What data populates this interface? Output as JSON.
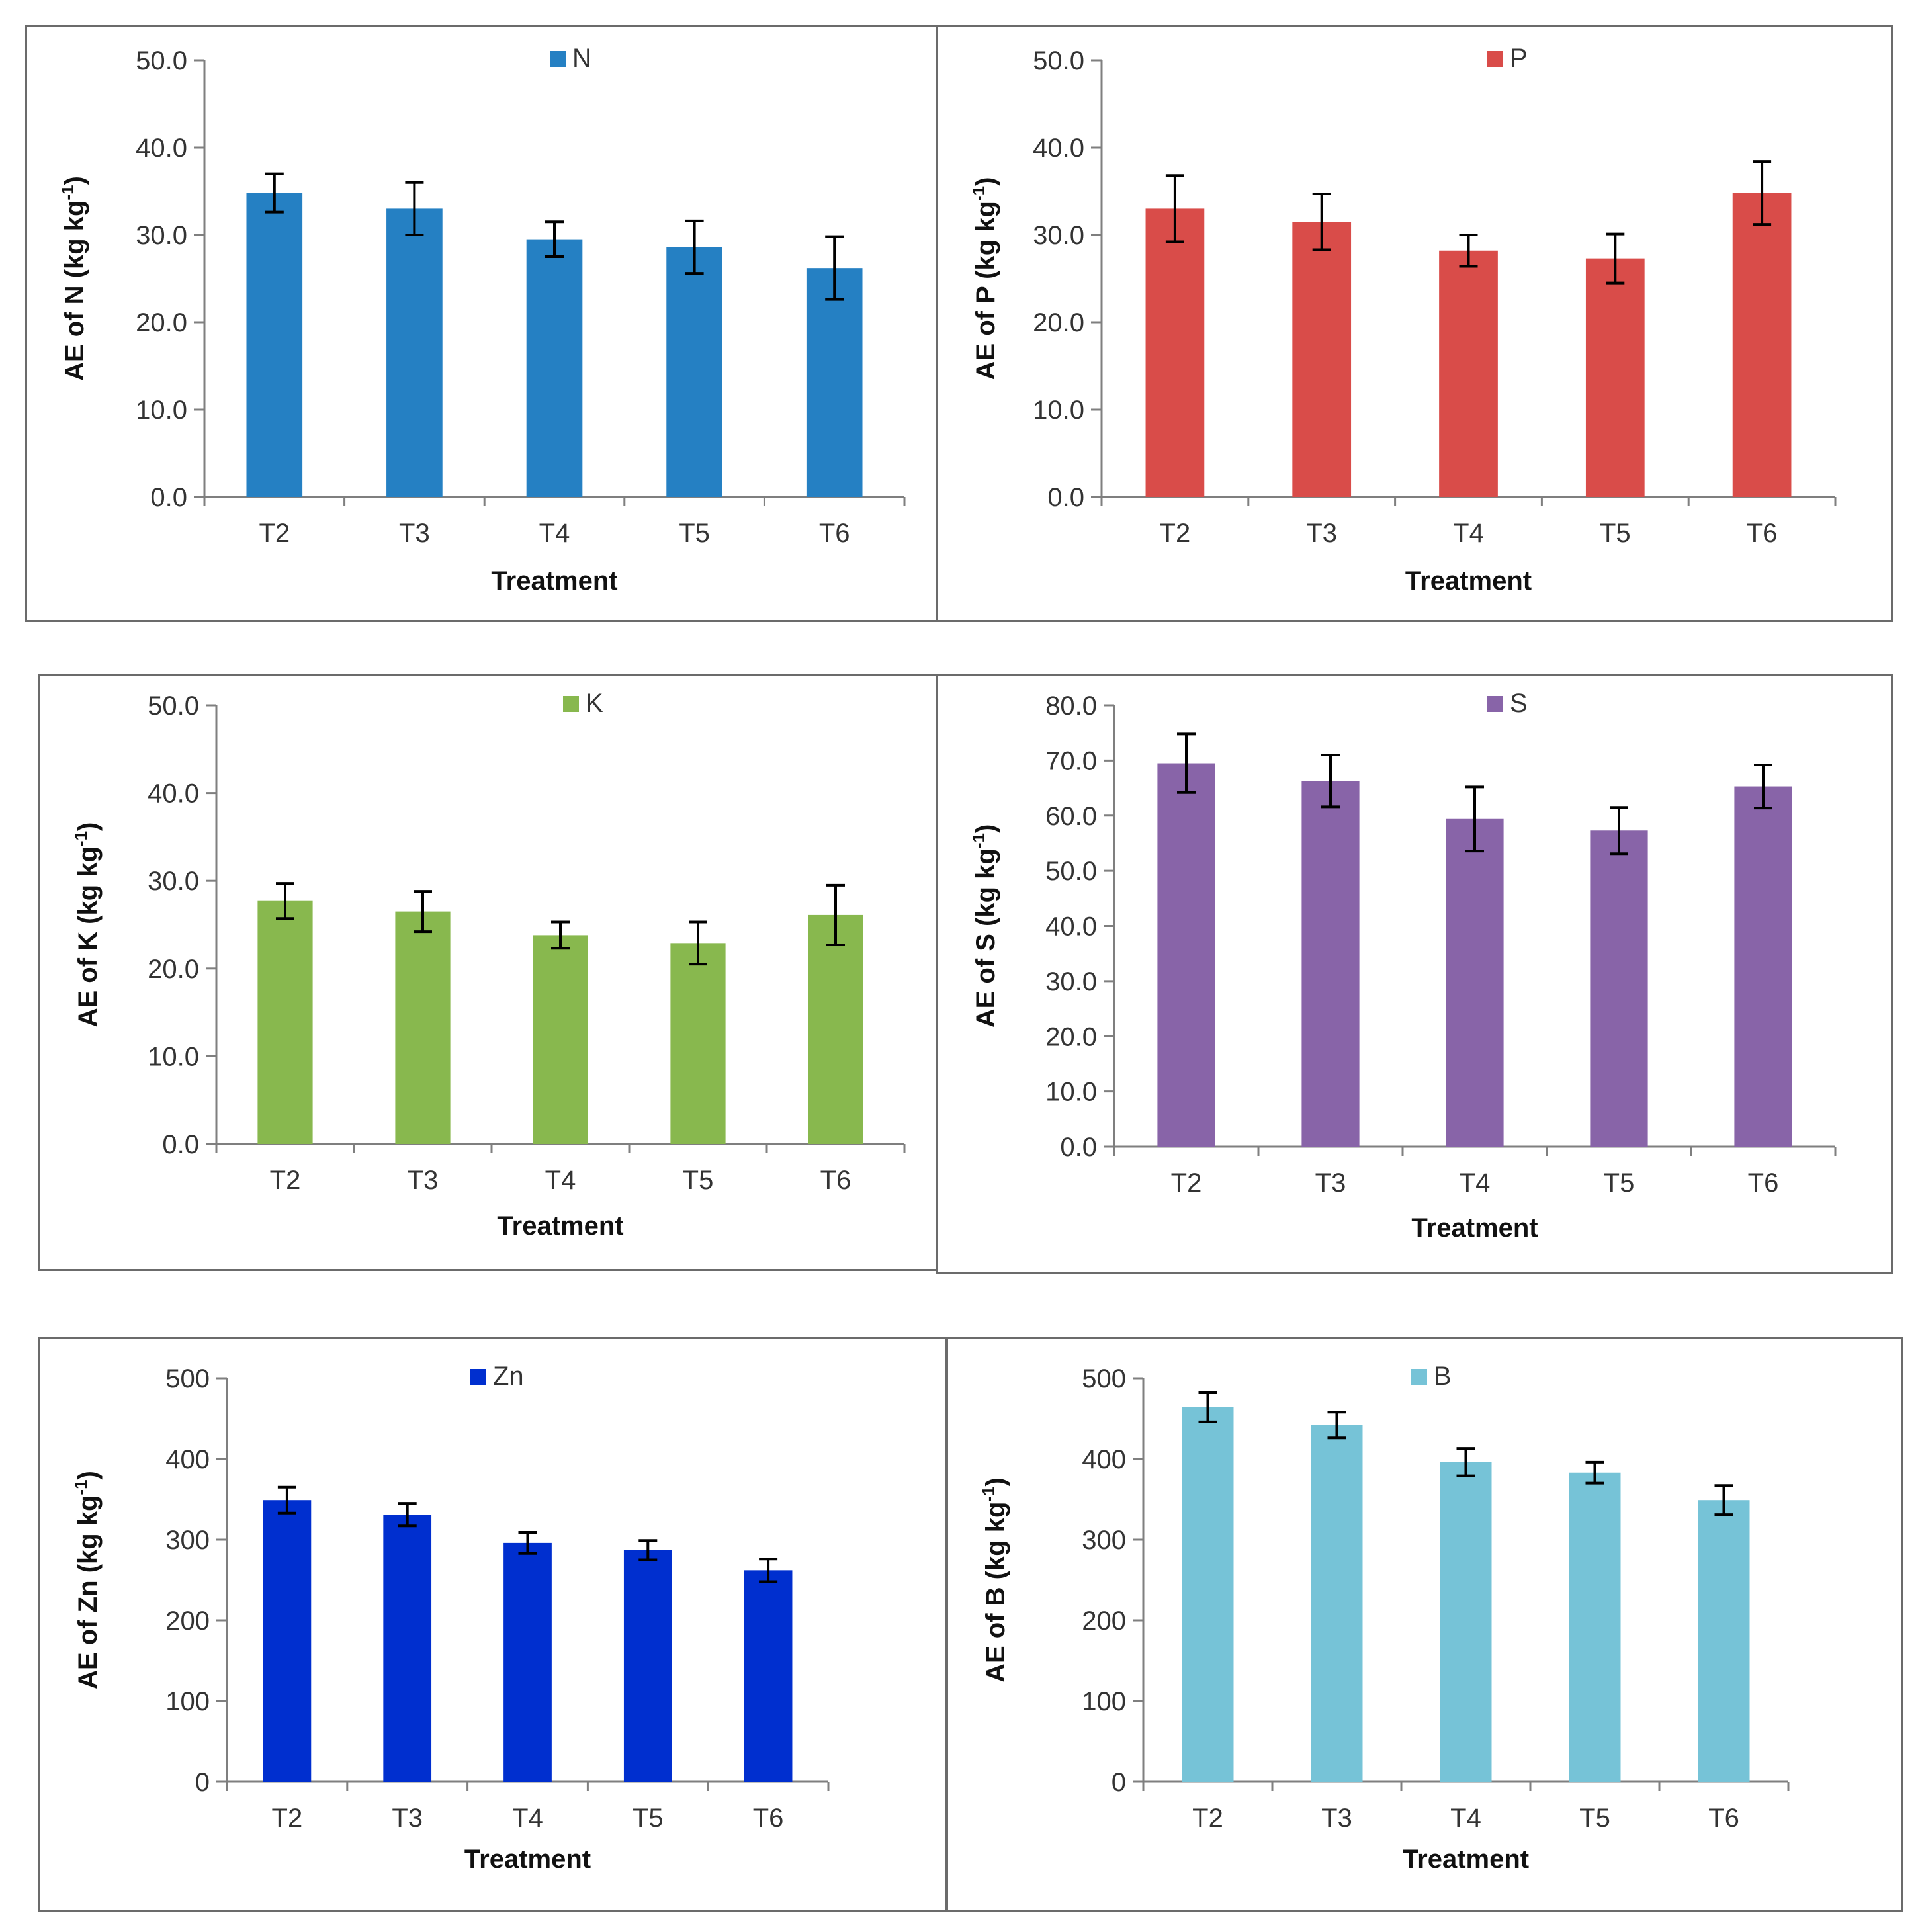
{
  "chart_data": [
    {
      "type": "bar",
      "categories": [
        "T2",
        "T3",
        "T4",
        "T5",
        "T6"
      ],
      "series": [
        {
          "name": "N",
          "values": [
            34.8,
            33.0,
            29.5,
            28.6,
            26.2
          ],
          "errors": [
            2.2,
            3.0,
            2.0,
            3.0,
            3.6
          ]
        }
      ],
      "color": "#2580c3",
      "xlabel": "Treatment",
      "ylabel": "AE of N (kg kg",
      "ylabel_sup": "-1",
      "ylabel_close": ")",
      "ylim": [
        0,
        50
      ],
      "yticks": [
        "0.0",
        "10.0",
        "20.0",
        "30.0",
        "40.0",
        "50.0"
      ],
      "legend_position": "top-center",
      "grid": false
    },
    {
      "type": "bar",
      "categories": [
        "T2",
        "T3",
        "T4",
        "T5",
        "T6"
      ],
      "series": [
        {
          "name": "P",
          "values": [
            33.0,
            31.5,
            28.2,
            27.3,
            34.8
          ],
          "errors": [
            3.8,
            3.2,
            1.8,
            2.8,
            3.6
          ]
        }
      ],
      "color": "#d94c49",
      "xlabel": "Treatment",
      "ylabel": "AE of P (kg kg",
      "ylabel_sup": "-1",
      "ylabel_close": ")",
      "ylim": [
        0,
        50
      ],
      "yticks": [
        "0.0",
        "10.0",
        "20.0",
        "30.0",
        "40.0",
        "50.0"
      ],
      "legend_position": "top-center",
      "grid": false
    },
    {
      "type": "bar",
      "categories": [
        "T2",
        "T3",
        "T4",
        "T5",
        "T6"
      ],
      "series": [
        {
          "name": "K",
          "values": [
            27.7,
            26.5,
            23.8,
            22.9,
            26.1
          ],
          "errors": [
            2.0,
            2.3,
            1.5,
            2.4,
            3.4
          ]
        }
      ],
      "color": "#88b84e",
      "xlabel": "Treatment",
      "ylabel": "AE of K (kg kg",
      "ylabel_sup": "-1",
      "ylabel_close": ")",
      "ylim": [
        0,
        50
      ],
      "yticks": [
        "0.0",
        "10.0",
        "20.0",
        "30.0",
        "40.0",
        "50.0"
      ],
      "legend_position": "top-center",
      "grid": false
    },
    {
      "type": "bar",
      "categories": [
        "T2",
        "T3",
        "T4",
        "T5",
        "T6"
      ],
      "series": [
        {
          "name": "S",
          "values": [
            69.5,
            66.3,
            59.4,
            57.3,
            65.3
          ],
          "errors": [
            5.3,
            4.7,
            5.8,
            4.2,
            3.9
          ]
        }
      ],
      "color": "#8864a8",
      "xlabel": "Treatment",
      "ylabel": "AE of S (kg kg",
      "ylabel_sup": "-1",
      "ylabel_close": ")",
      "ylim": [
        0,
        80
      ],
      "yticks": [
        "0.0",
        "10.0",
        "20.0",
        "30.0",
        "40.0",
        "50.0",
        "60.0",
        "70.0",
        "80.0"
      ],
      "legend_position": "top-center",
      "grid": false
    },
    {
      "type": "bar",
      "categories": [
        "T2",
        "T3",
        "T4",
        "T5",
        "T6"
      ],
      "series": [
        {
          "name": "Zn",
          "values": [
            349,
            331,
            296,
            287,
            262
          ],
          "errors": [
            16,
            14,
            13,
            12,
            14
          ]
        }
      ],
      "color": "#002fcf",
      "xlabel": "Treatment",
      "ylabel": "AE of Zn (kg kg",
      "ylabel_sup": "-1",
      "ylabel_close": ")",
      "ylim": [
        0,
        500
      ],
      "yticks": [
        "0",
        "100",
        "200",
        "300",
        "400",
        "500"
      ],
      "legend_position": "top-center",
      "grid": false
    },
    {
      "type": "bar",
      "categories": [
        "T2",
        "T3",
        "T4",
        "T5",
        "T6"
      ],
      "series": [
        {
          "name": "B",
          "values": [
            464,
            442,
            396,
            383,
            349
          ],
          "errors": [
            18,
            16,
            17,
            13,
            18
          ]
        }
      ],
      "color": "#76c3d7",
      "xlabel": "Treatment",
      "ylabel": "AE of B (kg kg",
      "ylabel_sup": "-1",
      "ylabel_close": ")",
      "ylim": [
        0,
        500
      ],
      "yticks": [
        "0",
        "100",
        "200",
        "300",
        "400",
        "500"
      ],
      "legend_position": "top-center",
      "grid": false
    }
  ]
}
